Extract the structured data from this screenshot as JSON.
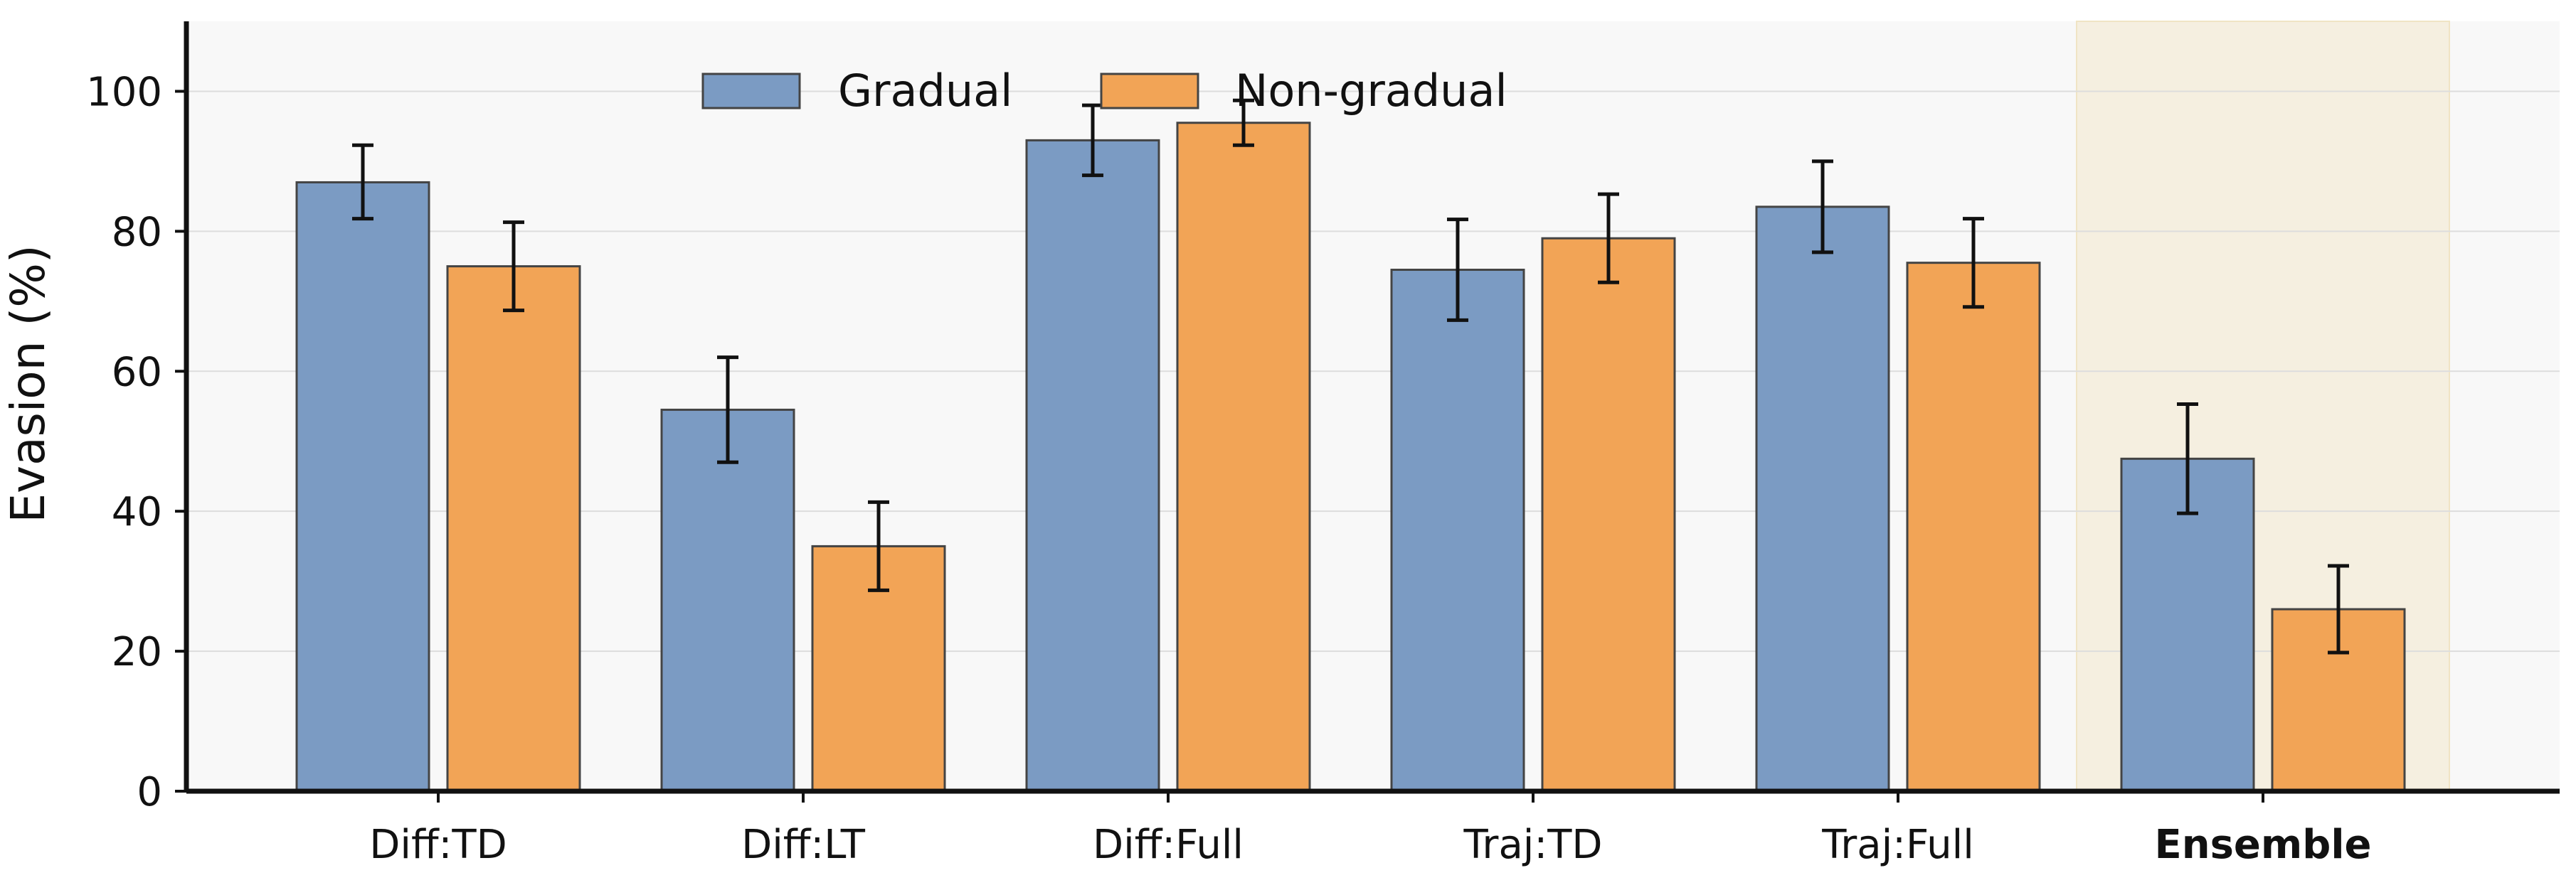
{
  "chart_data": {
    "type": "bar",
    "title": "",
    "xlabel": "",
    "ylabel": "Evasion (%)",
    "ylim": [
      0,
      110
    ],
    "yticks": [
      0,
      20,
      40,
      60,
      80,
      100
    ],
    "grid": true,
    "legend_position": "top-center",
    "categories": [
      "Diff:TD",
      "Diff:LT",
      "Diff:Full",
      "Traj:TD",
      "Traj:Full",
      "Ensemble"
    ],
    "emphasized_category": "Ensemble",
    "series": [
      {
        "name": "Gradual",
        "color": "#7b9bc3",
        "values": [
          87.0,
          54.5,
          93.0,
          74.5,
          83.5,
          47.5
        ],
        "error_low": [
          81.8,
          47.0,
          88.0,
          67.3,
          77.0,
          39.7
        ],
        "error_high": [
          92.3,
          62.0,
          98.0,
          81.7,
          90.0,
          55.3
        ]
      },
      {
        "name": "Non-gradual",
        "color": "#f2a456",
        "values": [
          75.0,
          35.0,
          95.5,
          79.0,
          75.5,
          26.0
        ],
        "error_low": [
          68.7,
          28.7,
          92.3,
          72.7,
          69.2,
          19.8
        ],
        "error_high": [
          81.3,
          41.3,
          98.7,
          85.3,
          81.8,
          32.2
        ]
      }
    ]
  },
  "style": {
    "plot_background": "#f8f8f8",
    "highlight_band": "#f5efe0",
    "grid_color": "#dddddd",
    "axis_color": "#111111",
    "bar_edge": "#444444",
    "error_color": "#111111"
  }
}
